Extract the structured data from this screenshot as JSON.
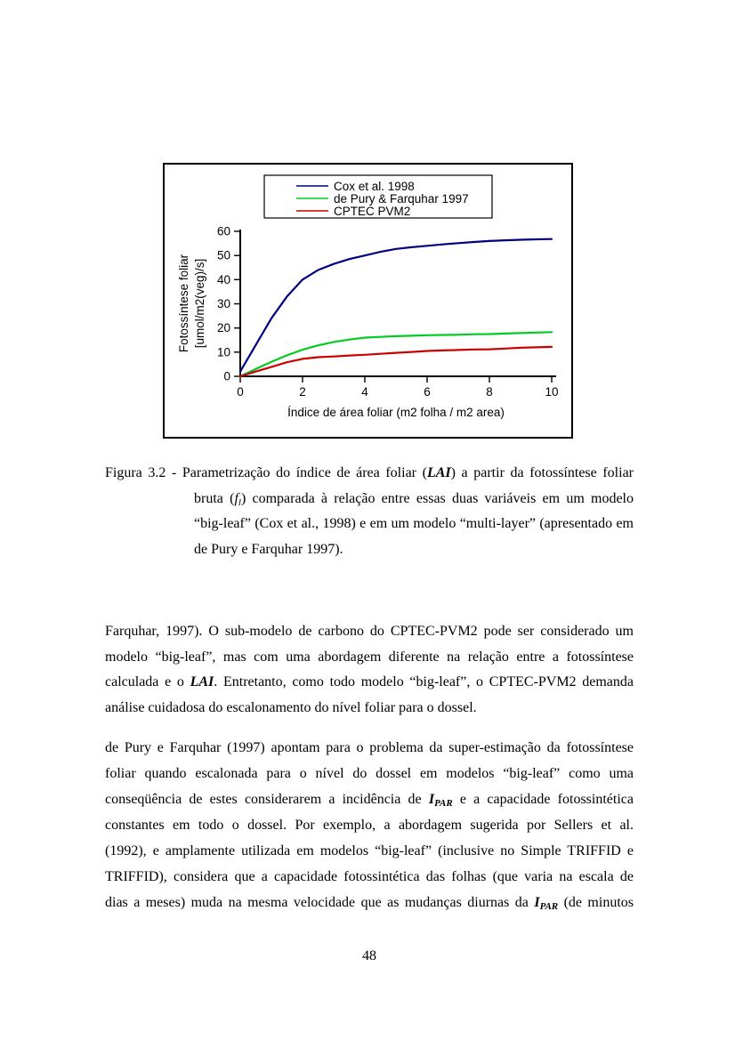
{
  "chart_data": {
    "type": "line",
    "title": "",
    "xlabel": "Índice de área foliar (m2 folha / m2 area)",
    "ylabel_line1": "Fotossíntese foliar",
    "ylabel_line2": "[umol/m2(veg)/s]",
    "xlim": [
      0,
      10
    ],
    "ylim": [
      0,
      60
    ],
    "xticks": [
      "0",
      "2",
      "4",
      "6",
      "8",
      "10"
    ],
    "yticks": [
      "0",
      "10",
      "20",
      "30",
      "40",
      "50",
      "60"
    ],
    "grid": "off",
    "legend_position": "top-center-boxed",
    "series": [
      {
        "name": "Cox et al. 1998",
        "color": "#000080",
        "points": [
          [
            0,
            2
          ],
          [
            0.5,
            13
          ],
          [
            1,
            24
          ],
          [
            1.5,
            33
          ],
          [
            2,
            40
          ],
          [
            2.5,
            44
          ],
          [
            3,
            46.5
          ],
          [
            3.5,
            48.5
          ],
          [
            4,
            50
          ],
          [
            4.5,
            51.5
          ],
          [
            5,
            52.7
          ],
          [
            5.5,
            53.4
          ],
          [
            6,
            54
          ],
          [
            6.5,
            54.6
          ],
          [
            7,
            55.1
          ],
          [
            7.5,
            55.6
          ],
          [
            8,
            56
          ],
          [
            8.5,
            56.3
          ],
          [
            9,
            56.5
          ],
          [
            9.5,
            56.7
          ],
          [
            10,
            56.8
          ]
        ]
      },
      {
        "name": "de Pury & Farquhar 1997",
        "color": "#00cc22",
        "points": [
          [
            0,
            0
          ],
          [
            0.5,
            3
          ],
          [
            1,
            6
          ],
          [
            1.5,
            8.7
          ],
          [
            2,
            11
          ],
          [
            2.5,
            12.8
          ],
          [
            3,
            14.2
          ],
          [
            3.5,
            15.2
          ],
          [
            4,
            16
          ],
          [
            4.5,
            16.3
          ],
          [
            5,
            16.6
          ],
          [
            5.5,
            16.8
          ],
          [
            6,
            17
          ],
          [
            6.5,
            17.1
          ],
          [
            7,
            17.2
          ],
          [
            7.5,
            17.4
          ],
          [
            8,
            17.5
          ],
          [
            8.5,
            17.7
          ],
          [
            9,
            17.9
          ],
          [
            9.5,
            18.1
          ],
          [
            10,
            18.3
          ]
        ]
      },
      {
        "name": "CPTEC PVM2",
        "color": "#cc0000",
        "points": [
          [
            0,
            0
          ],
          [
            0.5,
            2
          ],
          [
            1,
            3.9
          ],
          [
            1.5,
            5.8
          ],
          [
            2,
            7.2
          ],
          [
            2.5,
            7.9
          ],
          [
            3,
            8.2
          ],
          [
            3.5,
            8.6
          ],
          [
            4,
            8.9
          ],
          [
            4.5,
            9.3
          ],
          [
            5,
            9.7
          ],
          [
            5.5,
            10.1
          ],
          [
            6,
            10.5
          ],
          [
            6.5,
            10.7
          ],
          [
            7,
            10.9
          ],
          [
            7.5,
            11.1
          ],
          [
            8,
            11.2
          ],
          [
            8.5,
            11.5
          ],
          [
            9,
            11.8
          ],
          [
            9.5,
            12
          ],
          [
            10,
            12.2
          ]
        ]
      }
    ]
  },
  "caption": {
    "lines": [
      {
        "segments": [
          {
            "t": "Figura 3.2 - Parametrização do índice de área foliar ("
          },
          {
            "t": "LAI",
            "s": "bi"
          },
          {
            "t": ") a partir da fotossíntese foliar"
          }
        ]
      },
      {
        "segments": [
          {
            "t": "bruta ("
          },
          {
            "t": "f",
            "s": "i"
          },
          {
            "t": "l",
            "s": "isub"
          },
          {
            "t": ") comparada à relação entre essas duas variáveis em um modelo"
          }
        ]
      },
      {
        "segments": [
          {
            "t": "“big-leaf” (Cox et al., 1998) e em um modelo “multi-layer” (apresentado em"
          }
        ]
      },
      {
        "segments": [
          {
            "t": "de Pury e Farquhar 1997)."
          }
        ]
      }
    ]
  },
  "paragraph1": {
    "lines": [
      {
        "segments": [
          {
            "t": "Farquhar, 1997). O sub-modelo de carbono do CPTEC-PVM2 pode ser considerado um"
          }
        ]
      },
      {
        "segments": [
          {
            "t": "modelo “big-leaf”, mas com uma abordagem diferente na relação entre a fotossíntese"
          }
        ]
      },
      {
        "segments": [
          {
            "t": "calculada e o "
          },
          {
            "t": "LAI",
            "s": "bi"
          },
          {
            "t": ". Entretanto, como todo modelo “big-leaf”, o CPTEC-PVM2 demanda"
          }
        ]
      },
      {
        "segments": [
          {
            "t": "análise cuidadosa do escalonamento do nível foliar para o dossel."
          }
        ]
      }
    ]
  },
  "paragraph2": {
    "lines": [
      {
        "segments": [
          {
            "t": "de Pury e Farquhar (1997) apontam para o problema da super-estimação da fotossíntese"
          }
        ]
      },
      {
        "segments": [
          {
            "t": "foliar quando escalonada para o nível do dossel em modelos “big-leaf” como uma"
          }
        ]
      },
      {
        "segments": [
          {
            "t": "conseqüência de estes considerarem a incidência de "
          },
          {
            "t": "I",
            "s": "bi"
          },
          {
            "t": "PAR",
            "s": "bisub"
          },
          {
            "t": " e a capacidade fotossintética"
          }
        ]
      },
      {
        "segments": [
          {
            "t": "constantes em todo o dossel. Por exemplo, a abordagem sugerida por Sellers et al."
          }
        ]
      },
      {
        "segments": [
          {
            "t": "(1992), e amplamente utilizada em modelos “big-leaf” (inclusive no Simple TRIFFID e"
          }
        ]
      },
      {
        "segments": [
          {
            "t": "TRIFFID), considera que a capacidade fotossintética das folhas (que varia  na escala de"
          }
        ]
      },
      {
        "segments": [
          {
            "t": "dias a meses) muda na mesma velocidade que as mudanças diurnas da "
          },
          {
            "t": "I",
            "s": "bi"
          },
          {
            "t": "PAR",
            "s": "bisub"
          },
          {
            "t": " (de minutos"
          }
        ]
      }
    ]
  },
  "footer": {
    "page_number": "48"
  }
}
